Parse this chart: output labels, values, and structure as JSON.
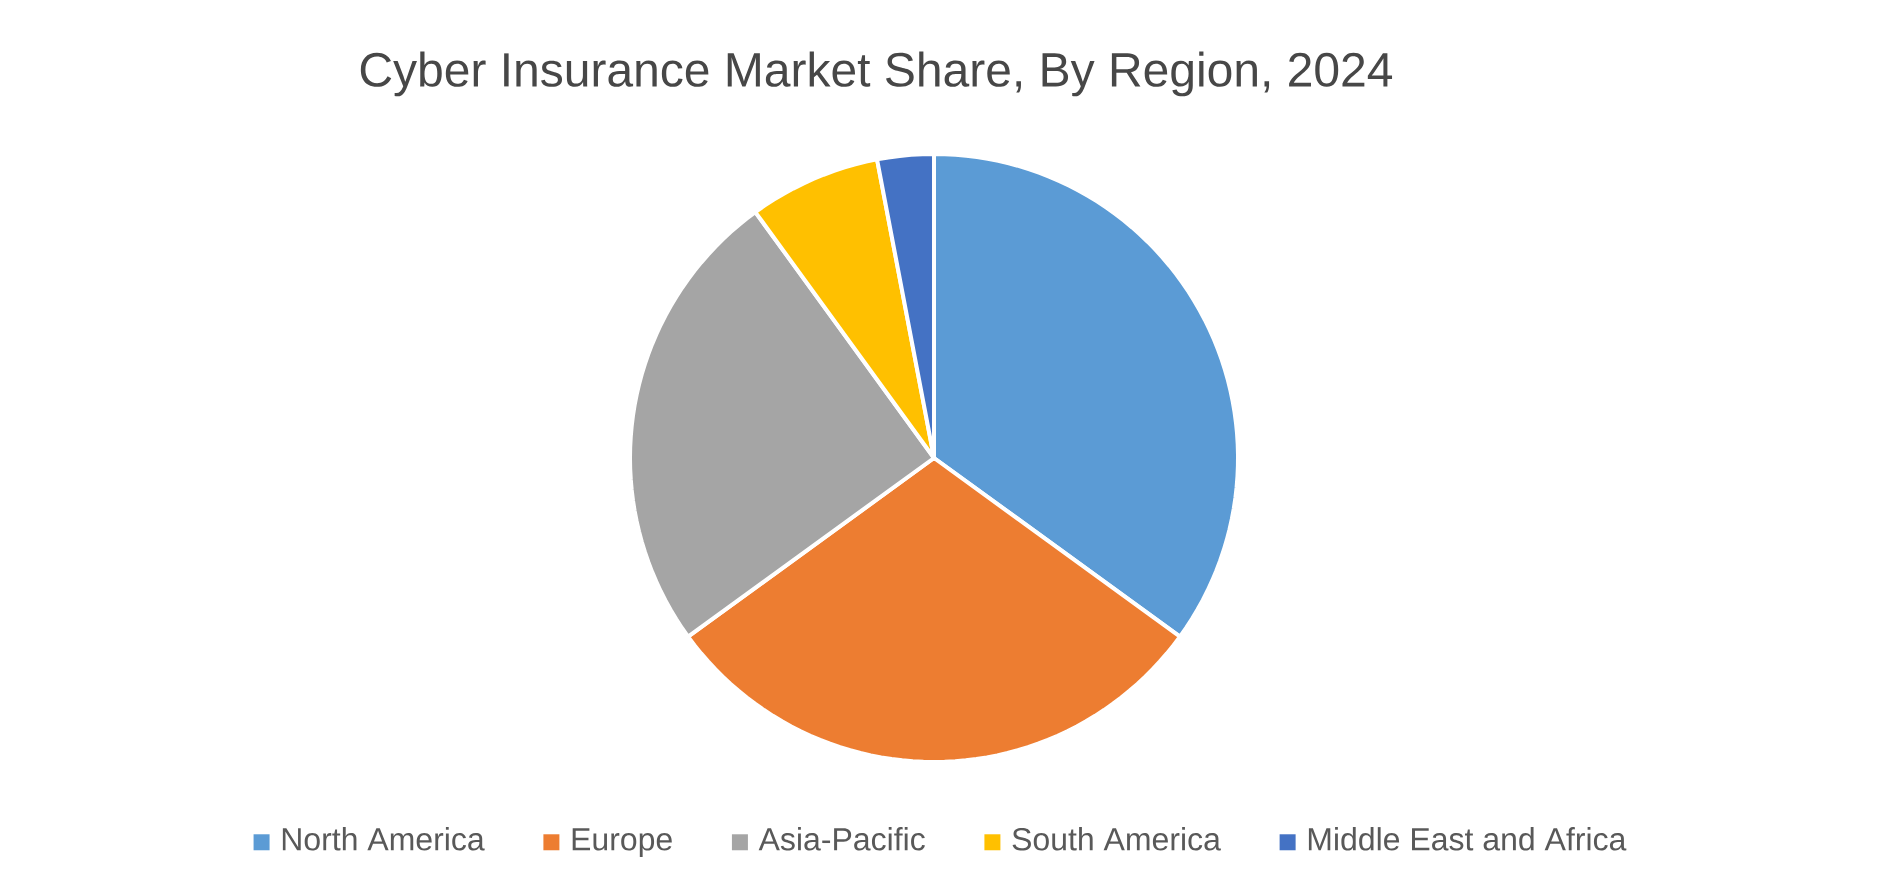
{
  "chart_data": {
    "type": "pie",
    "title": "Cyber Insurance Market Share, By Region, 2024",
    "categories": [
      "North America",
      "Europe",
      "Asia-Pacific",
      "South America",
      "Middle East and Africa"
    ],
    "values": [
      35,
      30,
      25,
      7,
      3
    ],
    "colors": [
      "#5b9bd5",
      "#ed7d31",
      "#a5a5a5",
      "#ffc000",
      "#4472c4"
    ],
    "legend": "bottom"
  }
}
